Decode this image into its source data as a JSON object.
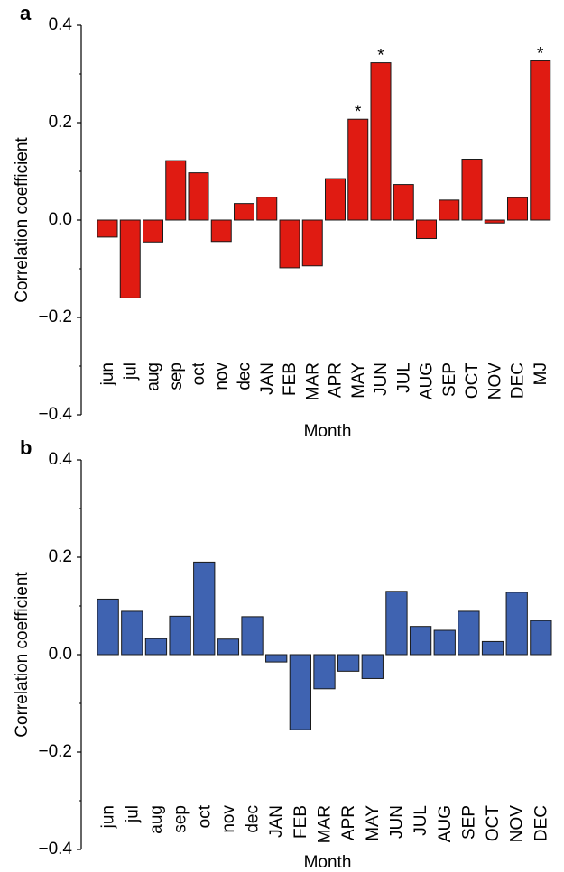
{
  "chart_data": [
    {
      "type": "bar",
      "panel_label": "a",
      "ylabel": "Correlation coefficient",
      "xlabel": "Month",
      "ylim": [
        -0.4,
        0.4
      ],
      "yticks": [
        0.4,
        0.2,
        0.0,
        -0.2,
        -0.4
      ],
      "ytick_labels": [
        "0.4",
        "0.2",
        "0.0",
        "−0.2",
        "−0.4"
      ],
      "bar_color": "#e01b12",
      "categories": [
        "jun",
        "jul",
        "aug",
        "sep",
        "oct",
        "nov",
        "dec",
        "JAN",
        "FEB",
        "MAR",
        "APR",
        "MAY",
        "JUN",
        "JUL",
        "AUG",
        "SEP",
        "OCT",
        "NOV",
        "DEC",
        "MJ"
      ],
      "values": [
        -0.035,
        -0.16,
        -0.045,
        0.122,
        0.097,
        -0.044,
        0.034,
        0.047,
        -0.098,
        -0.094,
        0.085,
        0.207,
        0.323,
        0.073,
        -0.038,
        0.041,
        0.125,
        -0.006,
        0.046,
        0.327
      ],
      "annotations": [
        "",
        "",
        "",
        "",
        "",
        "",
        "",
        "",
        "",
        "",
        "",
        "*",
        "*",
        "",
        "",
        "",
        "",
        "",
        "",
        "*"
      ]
    },
    {
      "type": "bar",
      "panel_label": "b",
      "ylabel": "Correlation coefficient",
      "xlabel": "Month",
      "ylim": [
        -0.4,
        0.4
      ],
      "yticks": [
        0.4,
        0.2,
        0.0,
        -0.2,
        -0.4
      ],
      "ytick_labels": [
        "0.4",
        "0.2",
        "0.0",
        "−0.2",
        "−0.4"
      ],
      "bar_color": "#3f63b1",
      "categories": [
        "jun",
        "jul",
        "aug",
        "sep",
        "oct",
        "nov",
        "dec",
        "JAN",
        "FEB",
        "MAR",
        "APR",
        "MAY",
        "JUN",
        "JUL",
        "AUG",
        "SEP",
        "OCT",
        "NOV",
        "DEC"
      ],
      "values": [
        0.114,
        0.089,
        0.033,
        0.079,
        0.19,
        0.032,
        0.078,
        -0.015,
        -0.154,
        -0.07,
        -0.034,
        -0.049,
        0.13,
        0.058,
        0.05,
        0.089,
        0.027,
        0.128,
        0.07
      ],
      "annotations": [
        "",
        "",
        "",
        "",
        "",
        "",
        "",
        "",
        "",
        "",
        "",
        "",
        "",
        "",
        "",
        "",
        "",
        "",
        ""
      ]
    }
  ]
}
